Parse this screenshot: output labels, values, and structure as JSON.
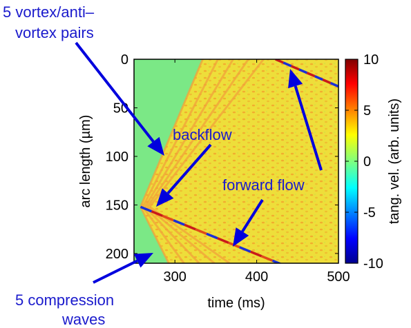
{
  "chart_data": {
    "type": "heatmap",
    "title": "",
    "xlabel": "time (ms)",
    "ylabel": "arc length (µm)",
    "xlim": [
      250,
      500
    ],
    "ylim": [
      210,
      0
    ],
    "xticks": [
      300,
      400,
      500
    ],
    "yticks": [
      0,
      50,
      100,
      150,
      200
    ],
    "colorbar": {
      "label": "tang. vel. (arb. units)",
      "range": [
        -10,
        10
      ],
      "ticks": [
        10,
        5,
        0,
        -5,
        -10
      ],
      "colormap": "jet",
      "stops": [
        "#00008f",
        "#0000ff",
        "#00ffff",
        "#7fff7f",
        "#ffff00",
        "#ff0000",
        "#800000"
      ]
    },
    "features": {
      "compression_waves": 5,
      "vortex_pairs": 5,
      "front_start": {
        "time_ms": 258,
        "arc_length_um": 152
      },
      "front_end": {
        "time_ms": 500,
        "arc_length_um": 235
      },
      "vortex_front_start": {
        "time_ms": 423,
        "arc_length_um": 0
      },
      "vortex_front_end": {
        "time_ms": 500,
        "arc_length_um": 28
      }
    },
    "annotations": [
      {
        "text": "5 vortex/anti–",
        "text2": "vortex pairs"
      },
      {
        "text": "backflow"
      },
      {
        "text": "forward flow"
      },
      {
        "text": "5 compression",
        "text2": "waves"
      }
    ]
  },
  "colors": {
    "annotation": "#1a1acc",
    "arrow": "#0000dd",
    "background_field": "#7be886"
  }
}
